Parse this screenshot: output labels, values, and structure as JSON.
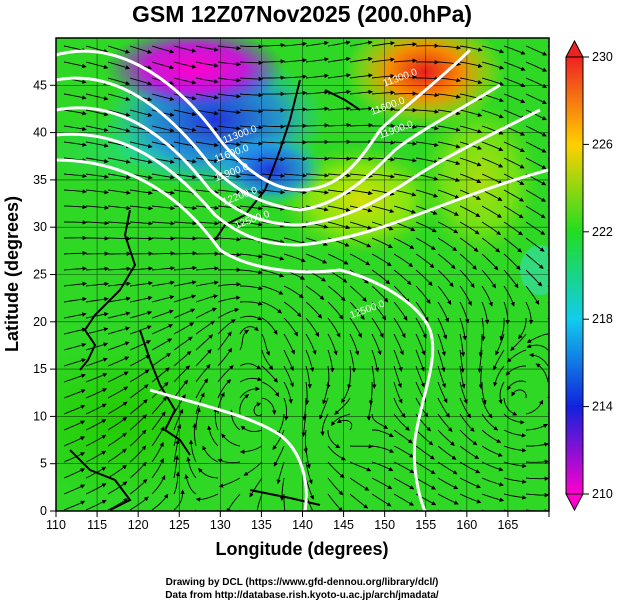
{
  "title": "GSM 12Z07Nov2025 (200.0hPa)",
  "xlabel": "Longitude (degrees)",
  "ylabel": "Latitude  (degrees)",
  "credit_line1": "Drawing by DCL (https://www.gfd-dennou.org/library/dcl/)",
  "credit_line2": "Data from http://database.rish.kyoto-u.ac.jp/arch/jmadata/",
  "chart_data": {
    "type": "heatmap",
    "title": "GSM 12Z07Nov2025 (200.0hPa)",
    "xlabel": "Longitude (degrees)",
    "ylabel": "Latitude  (degrees)",
    "xlim": [
      110,
      170
    ],
    "ylim": [
      0,
      50
    ],
    "x_ticks": [
      110,
      115,
      120,
      125,
      130,
      135,
      140,
      145,
      150,
      155,
      160,
      165
    ],
    "y_ticks": [
      0,
      5,
      10,
      15,
      20,
      25,
      30,
      35,
      40,
      45
    ],
    "grid": true,
    "colorbar": {
      "min": 210,
      "max": 230,
      "ticks": [
        210,
        214,
        218,
        222,
        226,
        230
      ],
      "colors": [
        "#ff00cc",
        "#1122dd",
        "#11ccee",
        "#22dd22",
        "#ffd000",
        "#ee2222"
      ]
    },
    "contour_labels": [
      {
        "text": "11300.0",
        "lon": 132.5,
        "lat": 39.5
      },
      {
        "text": "11600.0",
        "lon": 131.5,
        "lat": 37.5
      },
      {
        "text": "11900.0",
        "lon": 131.5,
        "lat": 35.5
      },
      {
        "text": "12200.0",
        "lon": 132.5,
        "lat": 33.0
      },
      {
        "text": "12500.0",
        "lon": 134.0,
        "lat": 30.5
      },
      {
        "text": "11300.0",
        "lon": 152.0,
        "lat": 45.5
      },
      {
        "text": "11600.0",
        "lon": 150.5,
        "lat": 42.5
      },
      {
        "text": "11900.0",
        "lon": 151.5,
        "lat": 40.0
      },
      {
        "text": "12500.0",
        "lon": 148.0,
        "lat": 21.0
      }
    ]
  }
}
